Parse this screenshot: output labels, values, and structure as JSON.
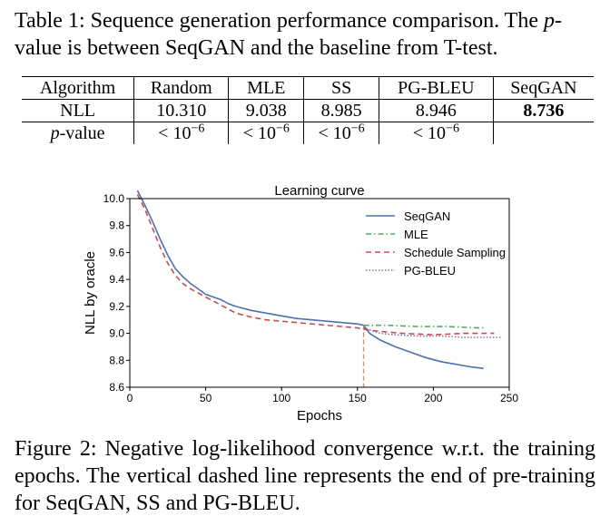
{
  "table": {
    "caption_prefix": "Table 1: Sequence generation performance comparison. The ",
    "caption_italic": "p",
    "caption_suffix": "-value is between SeqGAN and the baseline from T-test.",
    "headers": [
      "Algorithm",
      "Random",
      "MLE",
      "SS",
      "PG-BLEU",
      "SeqGAN"
    ],
    "nll_row": [
      "NLL",
      "10.310",
      "9.038",
      "8.985",
      "8.946",
      "8.736"
    ],
    "pvalue_label_italic": "p",
    "pvalue_label_suffix": "-value",
    "pvalue_base": "< 10",
    "pvalue_exp": "−6",
    "pvalue_count": 4
  },
  "chart_data": {
    "type": "line",
    "title": "Learning curve",
    "xlabel": "Epochs",
    "ylabel": "NLL by oracle",
    "xlim": [
      0,
      250
    ],
    "ylim": [
      8.6,
      10.0
    ],
    "xticks": [
      "0",
      "50",
      "100",
      "150",
      "200",
      "250"
    ],
    "yticks": [
      "8.6",
      "8.8",
      "9.0",
      "9.2",
      "9.4",
      "9.6",
      "9.8",
      "10.0"
    ],
    "pretrain_end": 154,
    "legend_position": "top-right",
    "series": [
      {
        "name": "SeqGAN",
        "color": "#4c72b0",
        "style": "solid",
        "points": [
          [
            5,
            10.06
          ],
          [
            10,
            9.95
          ],
          [
            15,
            9.83
          ],
          [
            20,
            9.7
          ],
          [
            25,
            9.58
          ],
          [
            30,
            9.48
          ],
          [
            35,
            9.42
          ],
          [
            40,
            9.37
          ],
          [
            45,
            9.33
          ],
          [
            50,
            9.29
          ],
          [
            55,
            9.27
          ],
          [
            60,
            9.25
          ],
          [
            65,
            9.22
          ],
          [
            70,
            9.2
          ],
          [
            80,
            9.17
          ],
          [
            90,
            9.15
          ],
          [
            100,
            9.13
          ],
          [
            110,
            9.11
          ],
          [
            120,
            9.1
          ],
          [
            130,
            9.09
          ],
          [
            140,
            9.08
          ],
          [
            150,
            9.07
          ],
          [
            154,
            9.06
          ],
          [
            158,
            9.0
          ],
          [
            165,
            8.95
          ],
          [
            175,
            8.9
          ],
          [
            185,
            8.86
          ],
          [
            195,
            8.82
          ],
          [
            205,
            8.79
          ],
          [
            215,
            8.77
          ],
          [
            225,
            8.75
          ],
          [
            233,
            8.74
          ]
        ]
      },
      {
        "name": "MLE",
        "color": "#55a868",
        "style": "dashdot",
        "points": [
          [
            154,
            9.06
          ],
          [
            170,
            9.06
          ],
          [
            190,
            9.05
          ],
          [
            210,
            9.05
          ],
          [
            230,
            9.04
          ],
          [
            233,
            9.04
          ]
        ]
      },
      {
        "name": "Schedule Sampling",
        "color": "#c44e52",
        "style": "dashed",
        "points": [
          [
            5,
            10.03
          ],
          [
            10,
            9.92
          ],
          [
            15,
            9.78
          ],
          [
            20,
            9.64
          ],
          [
            25,
            9.52
          ],
          [
            30,
            9.43
          ],
          [
            35,
            9.37
          ],
          [
            40,
            9.33
          ],
          [
            45,
            9.3
          ],
          [
            50,
            9.27
          ],
          [
            55,
            9.24
          ],
          [
            60,
            9.21
          ],
          [
            65,
            9.18
          ],
          [
            70,
            9.15
          ],
          [
            80,
            9.12
          ],
          [
            90,
            9.1
          ],
          [
            100,
            9.09
          ],
          [
            110,
            9.08
          ],
          [
            120,
            9.07
          ],
          [
            130,
            9.06
          ],
          [
            140,
            9.05
          ],
          [
            150,
            9.04
          ],
          [
            154,
            9.03
          ],
          [
            160,
            9.02
          ],
          [
            170,
            9.01
          ],
          [
            180,
            9.0
          ],
          [
            200,
            8.99
          ],
          [
            220,
            9.0
          ],
          [
            240,
            9.0
          ]
        ]
      },
      {
        "name": "PG-BLEU",
        "color": "#8172b2",
        "style": "dotted",
        "points": [
          [
            154,
            9.04
          ],
          [
            165,
            9.0
          ],
          [
            175,
            8.99
          ],
          [
            190,
            8.98
          ],
          [
            205,
            8.98
          ],
          [
            220,
            8.97
          ],
          [
            235,
            8.97
          ],
          [
            245,
            8.97
          ]
        ]
      }
    ]
  },
  "figure": {
    "caption": "Figure 2: Negative log-likelihood convergence w.r.t. the training epochs. The vertical dashed line represents the end of pre-training for SeqGAN, SS and PG-BLEU."
  }
}
